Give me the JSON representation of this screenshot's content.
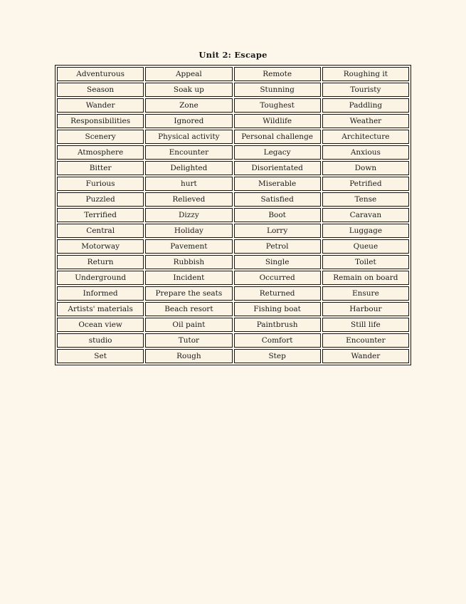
{
  "page": {
    "title": "Unit 2: Escape",
    "background_color": "#FDF6EB",
    "cell_background_color": "#FBF4E4",
    "border_color": "#141414",
    "text_color": "#1a1a1a"
  },
  "table": {
    "columns": 4,
    "rows": [
      [
        "Adventurous",
        "Appeal",
        "Remote",
        "Roughing it"
      ],
      [
        "Season",
        "Soak up",
        "Stunning",
        "Touristy"
      ],
      [
        "Wander",
        "Zone",
        "Toughest",
        "Paddling"
      ],
      [
        "Responsibilities",
        "Ignored",
        "Wildlife",
        "Weather"
      ],
      [
        "Scenery",
        "Physical activity",
        "Personal challenge",
        "Architecture"
      ],
      [
        "Atmosphere",
        "Encounter",
        "Legacy",
        "Anxious"
      ],
      [
        "Bitter",
        "Delighted",
        "Disorientated",
        "Down"
      ],
      [
        "Furious",
        "hurt",
        "Miserable",
        "Petrified"
      ],
      [
        "Puzzled",
        "Relieved",
        "Satisfied",
        "Tense"
      ],
      [
        "Terrified",
        "Dizzy",
        "Boot",
        "Caravan"
      ],
      [
        "Central",
        "Holiday",
        "Lorry",
        "Luggage"
      ],
      [
        "Motorway",
        "Pavement",
        "Petrol",
        "Queue"
      ],
      [
        "Return",
        "Rubbish",
        "Single",
        "Toilet"
      ],
      [
        "Underground",
        "Incident",
        "Occurred",
        "Remain on board"
      ],
      [
        "Informed",
        "Prepare the seats",
        "Returned",
        "Ensure"
      ],
      [
        "Artists' materials",
        "Beach resort",
        "Fishing boat",
        "Harbour"
      ],
      [
        "Ocean view",
        "Oil paint",
        "Paintbrush",
        "Still life"
      ],
      [
        "studio",
        "Tutor",
        "Comfort",
        "Encounter"
      ],
      [
        "Set",
        "Rough",
        "Step",
        "Wander"
      ]
    ]
  }
}
